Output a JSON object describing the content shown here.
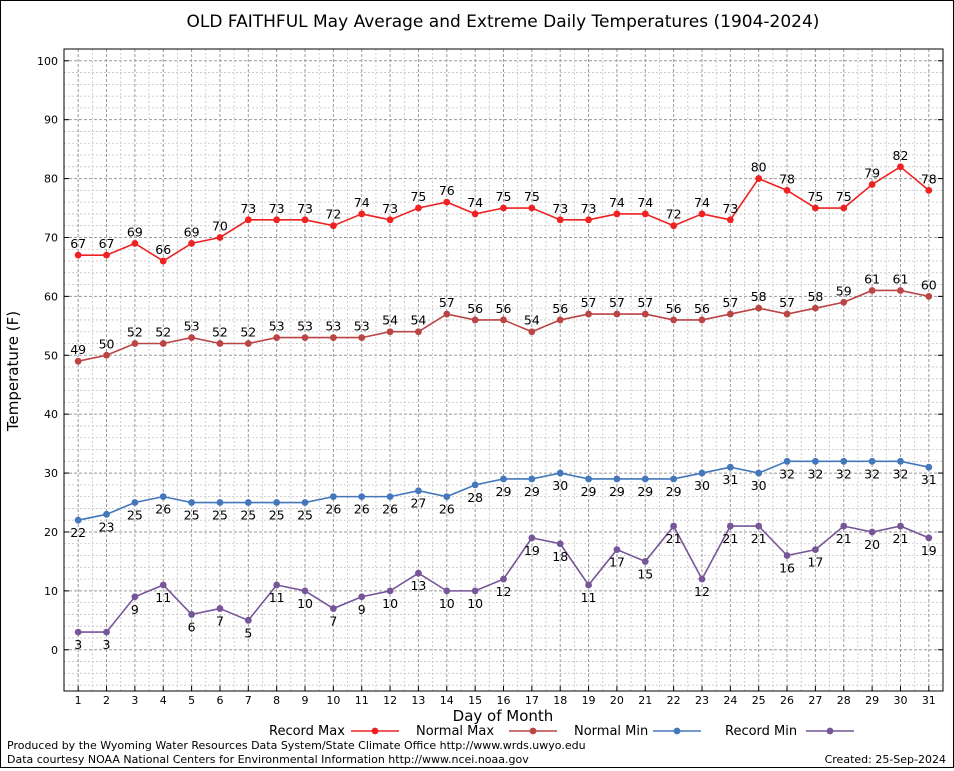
{
  "chart_data": {
    "type": "line",
    "title": "OLD FAITHFUL May Average and Extreme Daily Temperatures (1904-2024)",
    "xlabel": "Day of Month",
    "ylabel": "Temperature (F)",
    "xlim": [
      0.5,
      31.5
    ],
    "ylim": [
      -7,
      102
    ],
    "yticks": [
      0,
      10,
      20,
      30,
      40,
      50,
      60,
      70,
      80,
      90,
      100
    ],
    "x": [
      1,
      2,
      3,
      4,
      5,
      6,
      7,
      8,
      9,
      10,
      11,
      12,
      13,
      14,
      15,
      16,
      17,
      18,
      19,
      20,
      21,
      22,
      23,
      24,
      25,
      26,
      27,
      28,
      29,
      30,
      31
    ],
    "grid": true,
    "legend_position": "bottom",
    "series": [
      {
        "name": "Record Max",
        "color": "#ee2222",
        "label_pos": "above",
        "values": [
          67,
          67,
          69,
          66,
          69,
          70,
          73,
          73,
          73,
          72,
          74,
          73,
          75,
          76,
          74,
          75,
          75,
          73,
          73,
          74,
          74,
          72,
          74,
          73,
          80,
          78,
          75,
          75,
          79,
          82,
          78
        ]
      },
      {
        "name": "Normal Max",
        "color": "#bb4444",
        "label_pos": "above",
        "values": [
          49,
          50,
          52,
          52,
          53,
          52,
          52,
          53,
          53,
          53,
          53,
          54,
          54,
          57,
          56,
          56,
          54,
          56,
          57,
          57,
          57,
          56,
          56,
          57,
          58,
          57,
          58,
          59,
          61,
          61,
          60
        ]
      },
      {
        "name": "Normal Min",
        "color": "#4477bb",
        "label_pos": "below",
        "values": [
          22,
          23,
          25,
          26,
          25,
          25,
          25,
          25,
          25,
          26,
          26,
          26,
          27,
          26,
          28,
          29,
          29,
          30,
          29,
          29,
          29,
          29,
          30,
          31,
          30,
          32,
          32,
          32,
          32,
          32,
          31
        ]
      },
      {
        "name": "Record Min",
        "color": "#775599",
        "label_pos": "below",
        "values": [
          3,
          3,
          9,
          11,
          6,
          7,
          5,
          11,
          10,
          7,
          9,
          10,
          13,
          10,
          10,
          12,
          19,
          18,
          11,
          17,
          15,
          21,
          12,
          21,
          21,
          16,
          17,
          21,
          20,
          21,
          19
        ]
      }
    ]
  },
  "footer": {
    "produced_by": "Produced by the Wyoming Water Resources Data System/State Climate Office http://www.wrds.uwyo.edu",
    "data_courtesy": "Data courtesy NOAA National Centers for Environmental Information http://www.ncei.noaa.gov",
    "created": "Created:  25-Sep-2024"
  }
}
